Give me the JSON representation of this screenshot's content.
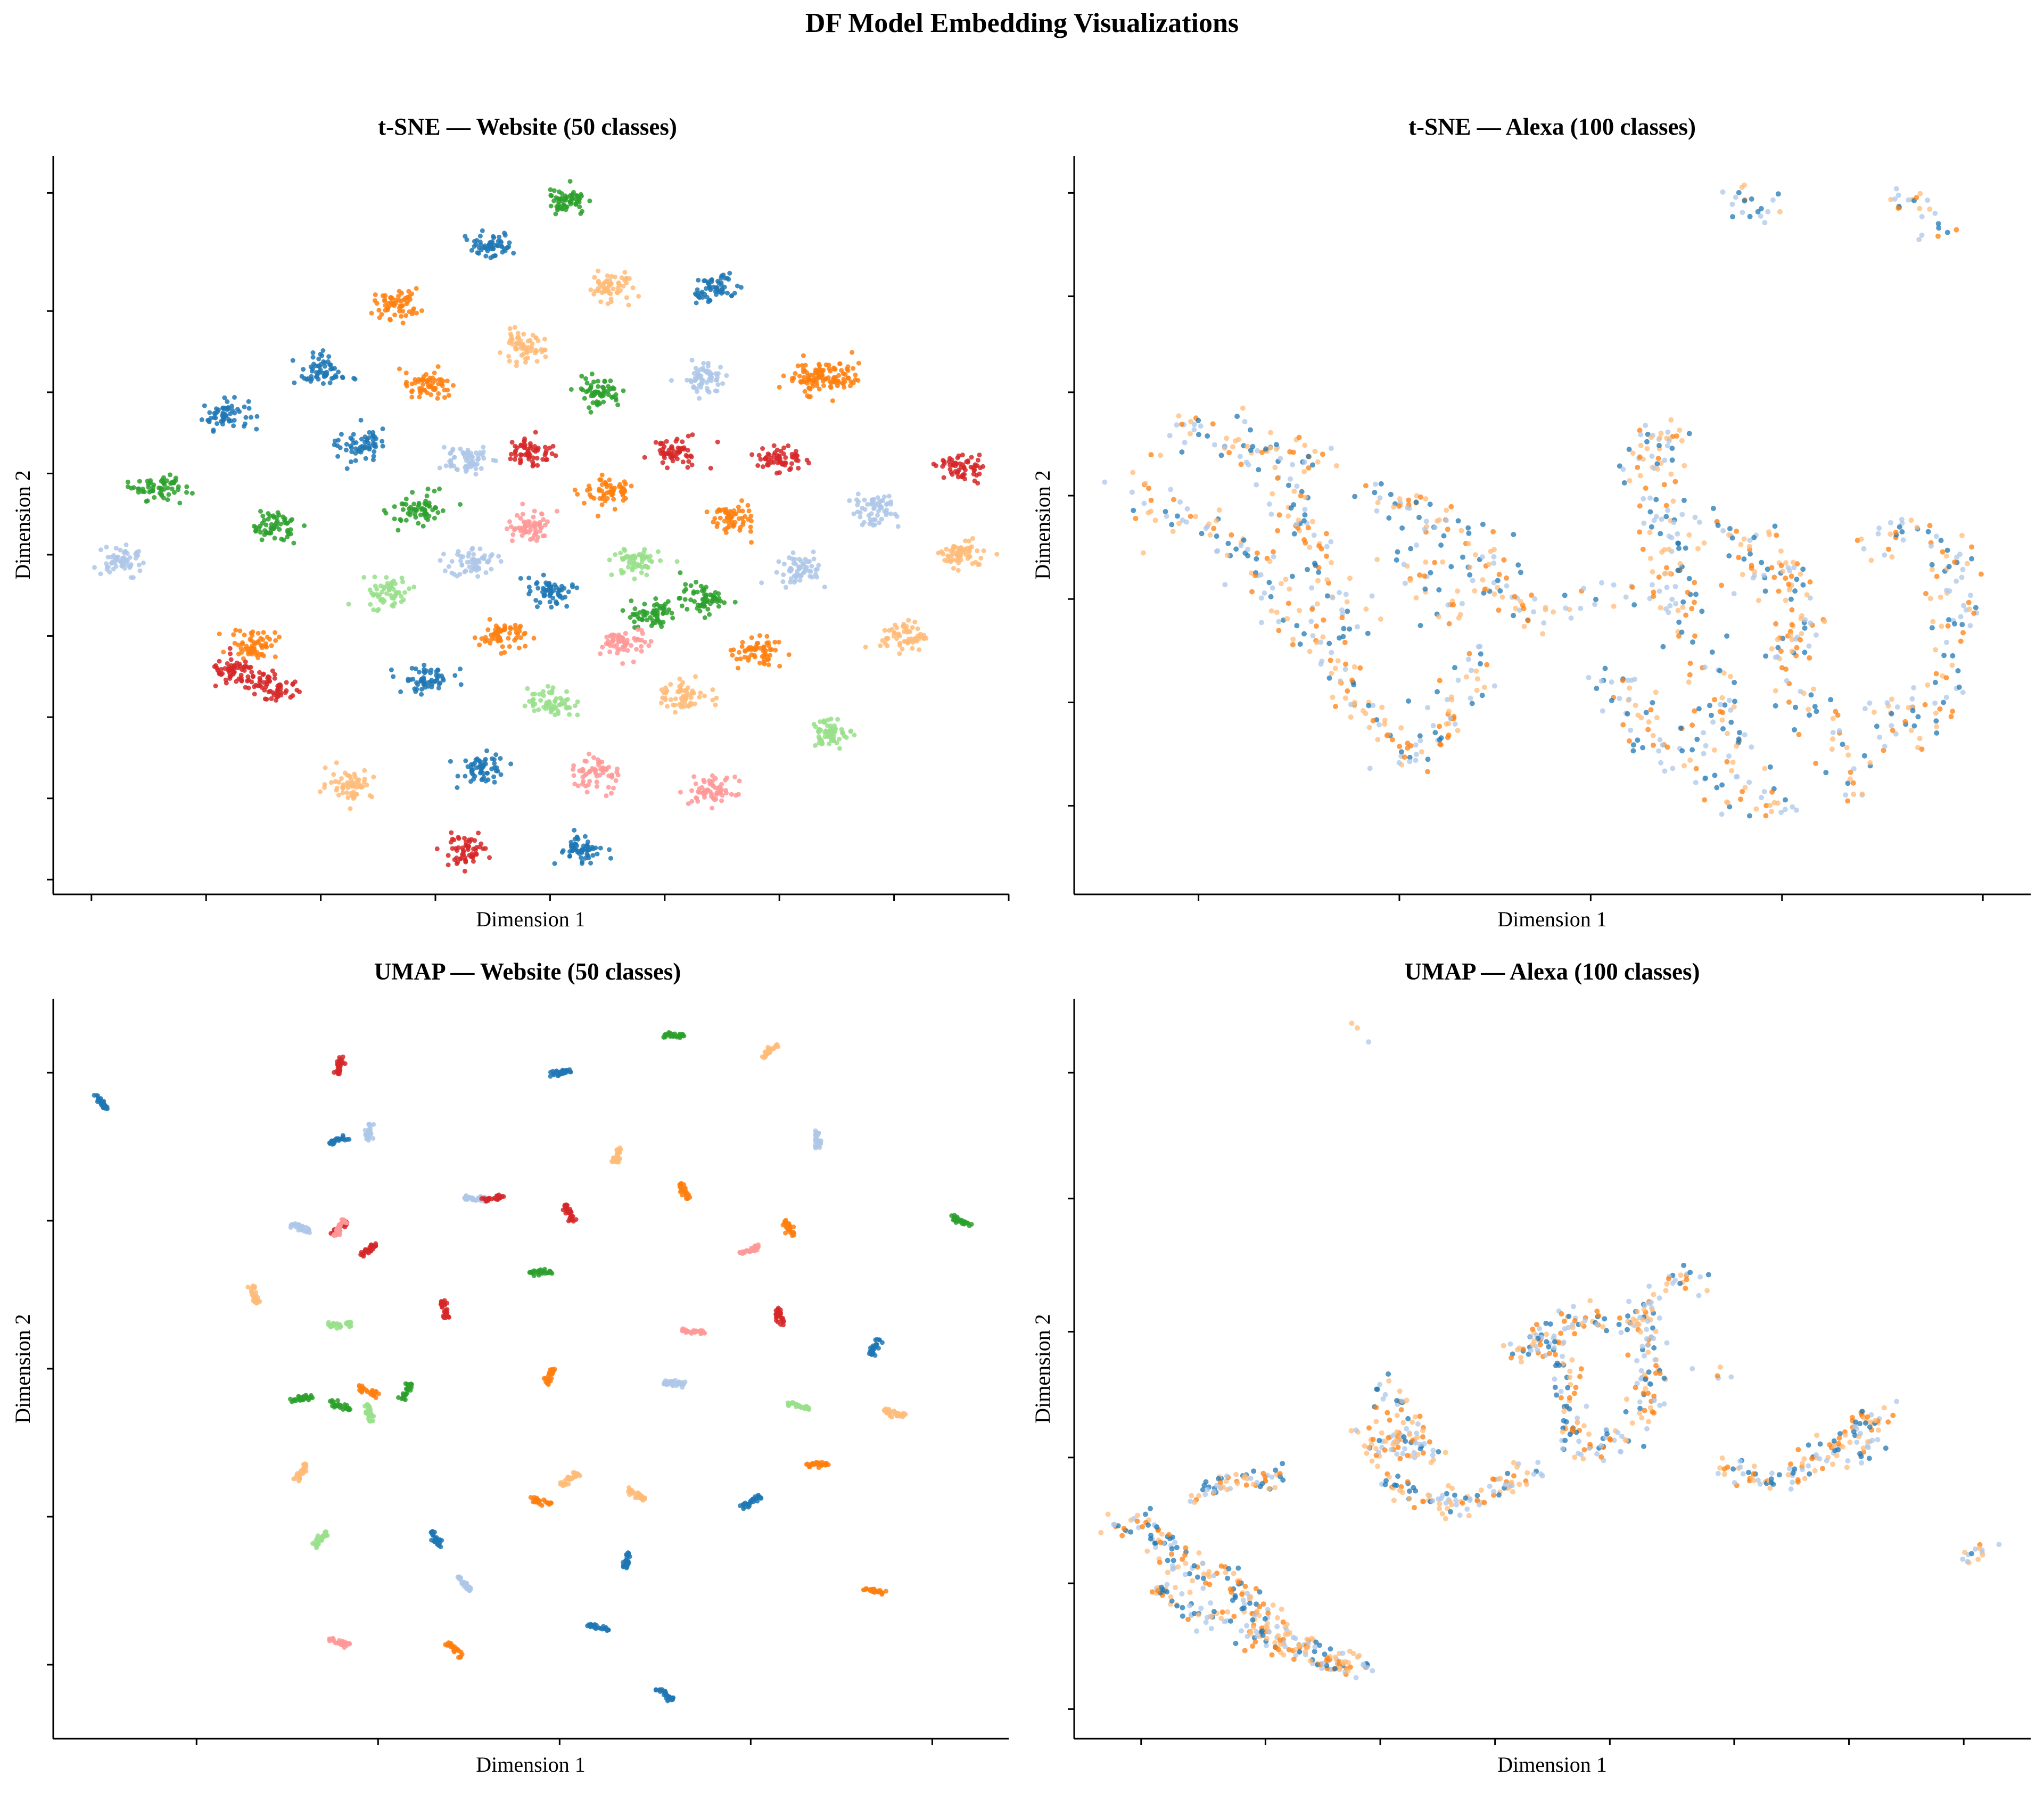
{
  "figure": {
    "suptitle": "DF Model Embedding Visualizations",
    "palette": [
      "#1f77b4",
      "#aec7e8",
      "#ff7f0e",
      "#ffbb78",
      "#2ca02c",
      "#98df8a",
      "#d62728",
      "#ff9896"
    ]
  },
  "chart_data": [
    {
      "type": "scatter",
      "title": "t-SNE — Website (50 classes)",
      "xlabel": "Dimension 1",
      "ylabel": "Dimension 2",
      "xlim": [
        0,
        100
      ],
      "ylim": [
        0,
        100
      ],
      "grid": false,
      "tick_labels_shown": false,
      "xticks": [
        4,
        16,
        28,
        40,
        52,
        64,
        76,
        88,
        100
      ],
      "yticks": [
        2,
        13,
        24,
        35,
        46,
        57,
        68,
        79,
        95
      ],
      "series": [
        {
          "name": "Tab-blue",
          "color": "#1f77b4",
          "centroids": [
            [
              46,
              88
            ],
            [
              69,
              82
            ],
            [
              28,
              71
            ],
            [
              18,
              65
            ],
            [
              32,
              61
            ],
            [
              52,
              41
            ],
            [
              39,
              29
            ],
            [
              45,
              17
            ],
            [
              55,
              6
            ]
          ]
        },
        {
          "name": "Tab-light-blue",
          "color": "#aec7e8",
          "centroids": [
            [
              7,
              45
            ],
            [
              43,
              59
            ],
            [
              44,
              45
            ],
            [
              68,
              70
            ],
            [
              86,
              52
            ],
            [
              78,
              44
            ]
          ]
        },
        {
          "name": "Tab-orange",
          "color": "#ff7f0e",
          "centroids": [
            [
              36,
              80
            ],
            [
              39,
              69
            ],
            [
              58,
              55
            ],
            [
              71,
              51
            ],
            [
              47,
              35
            ],
            [
              74,
              33
            ],
            [
              79,
              70
            ],
            [
              82,
              70
            ],
            [
              21,
              34
            ]
          ]
        },
        {
          "name": "Tab-light-orange",
          "color": "#ffbb78",
          "centroids": [
            [
              58,
              82
            ],
            [
              49,
              74
            ],
            [
              95,
              46
            ],
            [
              89,
              35
            ],
            [
              66,
              27
            ],
            [
              31,
              15
            ]
          ]
        },
        {
          "name": "Tab-green",
          "color": "#2ca02c",
          "centroids": [
            [
              54,
              94
            ],
            [
              57,
              68
            ],
            [
              11,
              55
            ],
            [
              23,
              50
            ],
            [
              38,
              52
            ],
            [
              68,
              40
            ],
            [
              63,
              38
            ]
          ]
        },
        {
          "name": "Tab-light-green",
          "color": "#98df8a",
          "centroids": [
            [
              61,
              45
            ],
            [
              35,
              41
            ],
            [
              52,
              26
            ],
            [
              81,
              22
            ]
          ]
        },
        {
          "name": "Tab-red",
          "color": "#d62728",
          "centroids": [
            [
              50,
              60
            ],
            [
              65,
              60
            ],
            [
              76,
              59
            ],
            [
              95,
              58
            ],
            [
              43,
              6
            ],
            [
              23,
              28
            ],
            [
              19,
              30
            ]
          ]
        },
        {
          "name": "Tab-pink",
          "color": "#ff9896",
          "centroids": [
            [
              50,
              50
            ],
            [
              60,
              34
            ],
            [
              57,
              16
            ],
            [
              69,
              14
            ]
          ]
        }
      ]
    },
    {
      "type": "scatter",
      "title": "t-SNE — Alexa (100 classes)",
      "xlabel": "Dimension 1",
      "ylabel": "Dimension 2",
      "xlim": [
        0,
        100
      ],
      "ylim": [
        0,
        100
      ],
      "grid": false,
      "tick_labels_shown": false,
      "xticks": [
        13,
        34,
        54,
        74,
        95
      ],
      "yticks": [
        12,
        26,
        40,
        54,
        68,
        81,
        95
      ],
      "series": [
        {
          "name": "Tab-blue",
          "color": "#1f77b4",
          "point_count": 280
        },
        {
          "name": "Tab-light-blue",
          "color": "#aec7e8",
          "point_count": 300
        },
        {
          "name": "Tab-orange",
          "color": "#ff7f0e",
          "point_count": 240
        },
        {
          "name": "Tab-light-orange",
          "color": "#ffbb78",
          "point_count": 300
        }
      ]
    },
    {
      "type": "scatter",
      "title": "UMAP — Website (50 classes)",
      "xlabel": "Dimension 1",
      "ylabel": "Dimension 2",
      "xlim": [
        0,
        100
      ],
      "ylim": [
        0,
        100
      ],
      "grid": false,
      "tick_labels_shown": false,
      "xticks": [
        15,
        34,
        53,
        73,
        92
      ],
      "yticks": [
        10,
        30,
        50,
        70,
        90
      ],
      "series": [
        {
          "name": "Tab-blue",
          "color": "#1f77b4",
          "centroids": [
            [
              5,
              86
            ],
            [
              30,
              81
            ],
            [
              53,
              90
            ],
            [
              86,
              53
            ],
            [
              40,
              27
            ],
            [
              73,
              32
            ],
            [
              60,
              24
            ],
            [
              57,
              15
            ],
            [
              64,
              6
            ]
          ]
        },
        {
          "name": "Tab-light-blue",
          "color": "#aec7e8",
          "centroids": [
            [
              33,
              82
            ],
            [
              80,
              81
            ],
            [
              26,
              69
            ],
            [
              44,
              73
            ],
            [
              65,
              48
            ],
            [
              43,
              21
            ]
          ]
        },
        {
          "name": "Tab-orange",
          "color": "#ff7f0e",
          "centroids": [
            [
              66,
              74
            ],
            [
              33,
              47
            ],
            [
              52,
              49
            ],
            [
              77,
              69
            ],
            [
              80,
              37
            ],
            [
              51,
              32
            ],
            [
              86,
              20
            ],
            [
              42,
              12
            ]
          ]
        },
        {
          "name": "Tab-light-orange",
          "color": "#ffbb78",
          "centroids": [
            [
              59,
              79
            ],
            [
              75,
              93
            ],
            [
              21,
              60
            ],
            [
              88,
              44
            ],
            [
              26,
              36
            ],
            [
              54,
              35
            ],
            [
              61,
              33
            ]
          ]
        },
        {
          "name": "Tab-green",
          "color": "#2ca02c",
          "centroids": [
            [
              65,
              95
            ],
            [
              51,
              63
            ],
            [
              37,
              47
            ],
            [
              26,
              46
            ],
            [
              30,
              45
            ],
            [
              95,
              70
            ]
          ]
        },
        {
          "name": "Tab-light-green",
          "color": "#98df8a",
          "centroids": [
            [
              30,
              56
            ],
            [
              78,
              45
            ],
            [
              28,
              27
            ],
            [
              33,
              44
            ]
          ]
        },
        {
          "name": "Tab-red",
          "color": "#d62728",
          "centroids": [
            [
              30,
              91
            ],
            [
              46,
              73
            ],
            [
              54,
              71
            ],
            [
              33,
              66
            ],
            [
              41,
              58
            ],
            [
              76,
              57
            ],
            [
              30,
              69
            ]
          ]
        },
        {
          "name": "Tab-pink",
          "color": "#ff9896",
          "centroids": [
            [
              30,
              69
            ],
            [
              67,
              55
            ],
            [
              73,
              66
            ],
            [
              30,
              13
            ]
          ]
        }
      ]
    },
    {
      "type": "scatter",
      "title": "UMAP — Alexa (100 classes)",
      "xlabel": "Dimension 1",
      "ylabel": "Dimension 2",
      "xlim": [
        0,
        100
      ],
      "ylim": [
        0,
        100
      ],
      "grid": false,
      "tick_labels_shown": false,
      "xticks": [
        7,
        20,
        32,
        44,
        56,
        69,
        81,
        93
      ],
      "yticks": [
        4,
        21,
        38,
        55,
        73,
        90
      ],
      "series": [
        {
          "name": "Tab-blue",
          "color": "#1f77b4",
          "point_count": 230
        },
        {
          "name": "Tab-light-blue",
          "color": "#aec7e8",
          "point_count": 280
        },
        {
          "name": "Tab-orange",
          "color": "#ff7f0e",
          "point_count": 220
        },
        {
          "name": "Tab-light-orange",
          "color": "#ffbb78",
          "point_count": 300
        }
      ]
    }
  ]
}
